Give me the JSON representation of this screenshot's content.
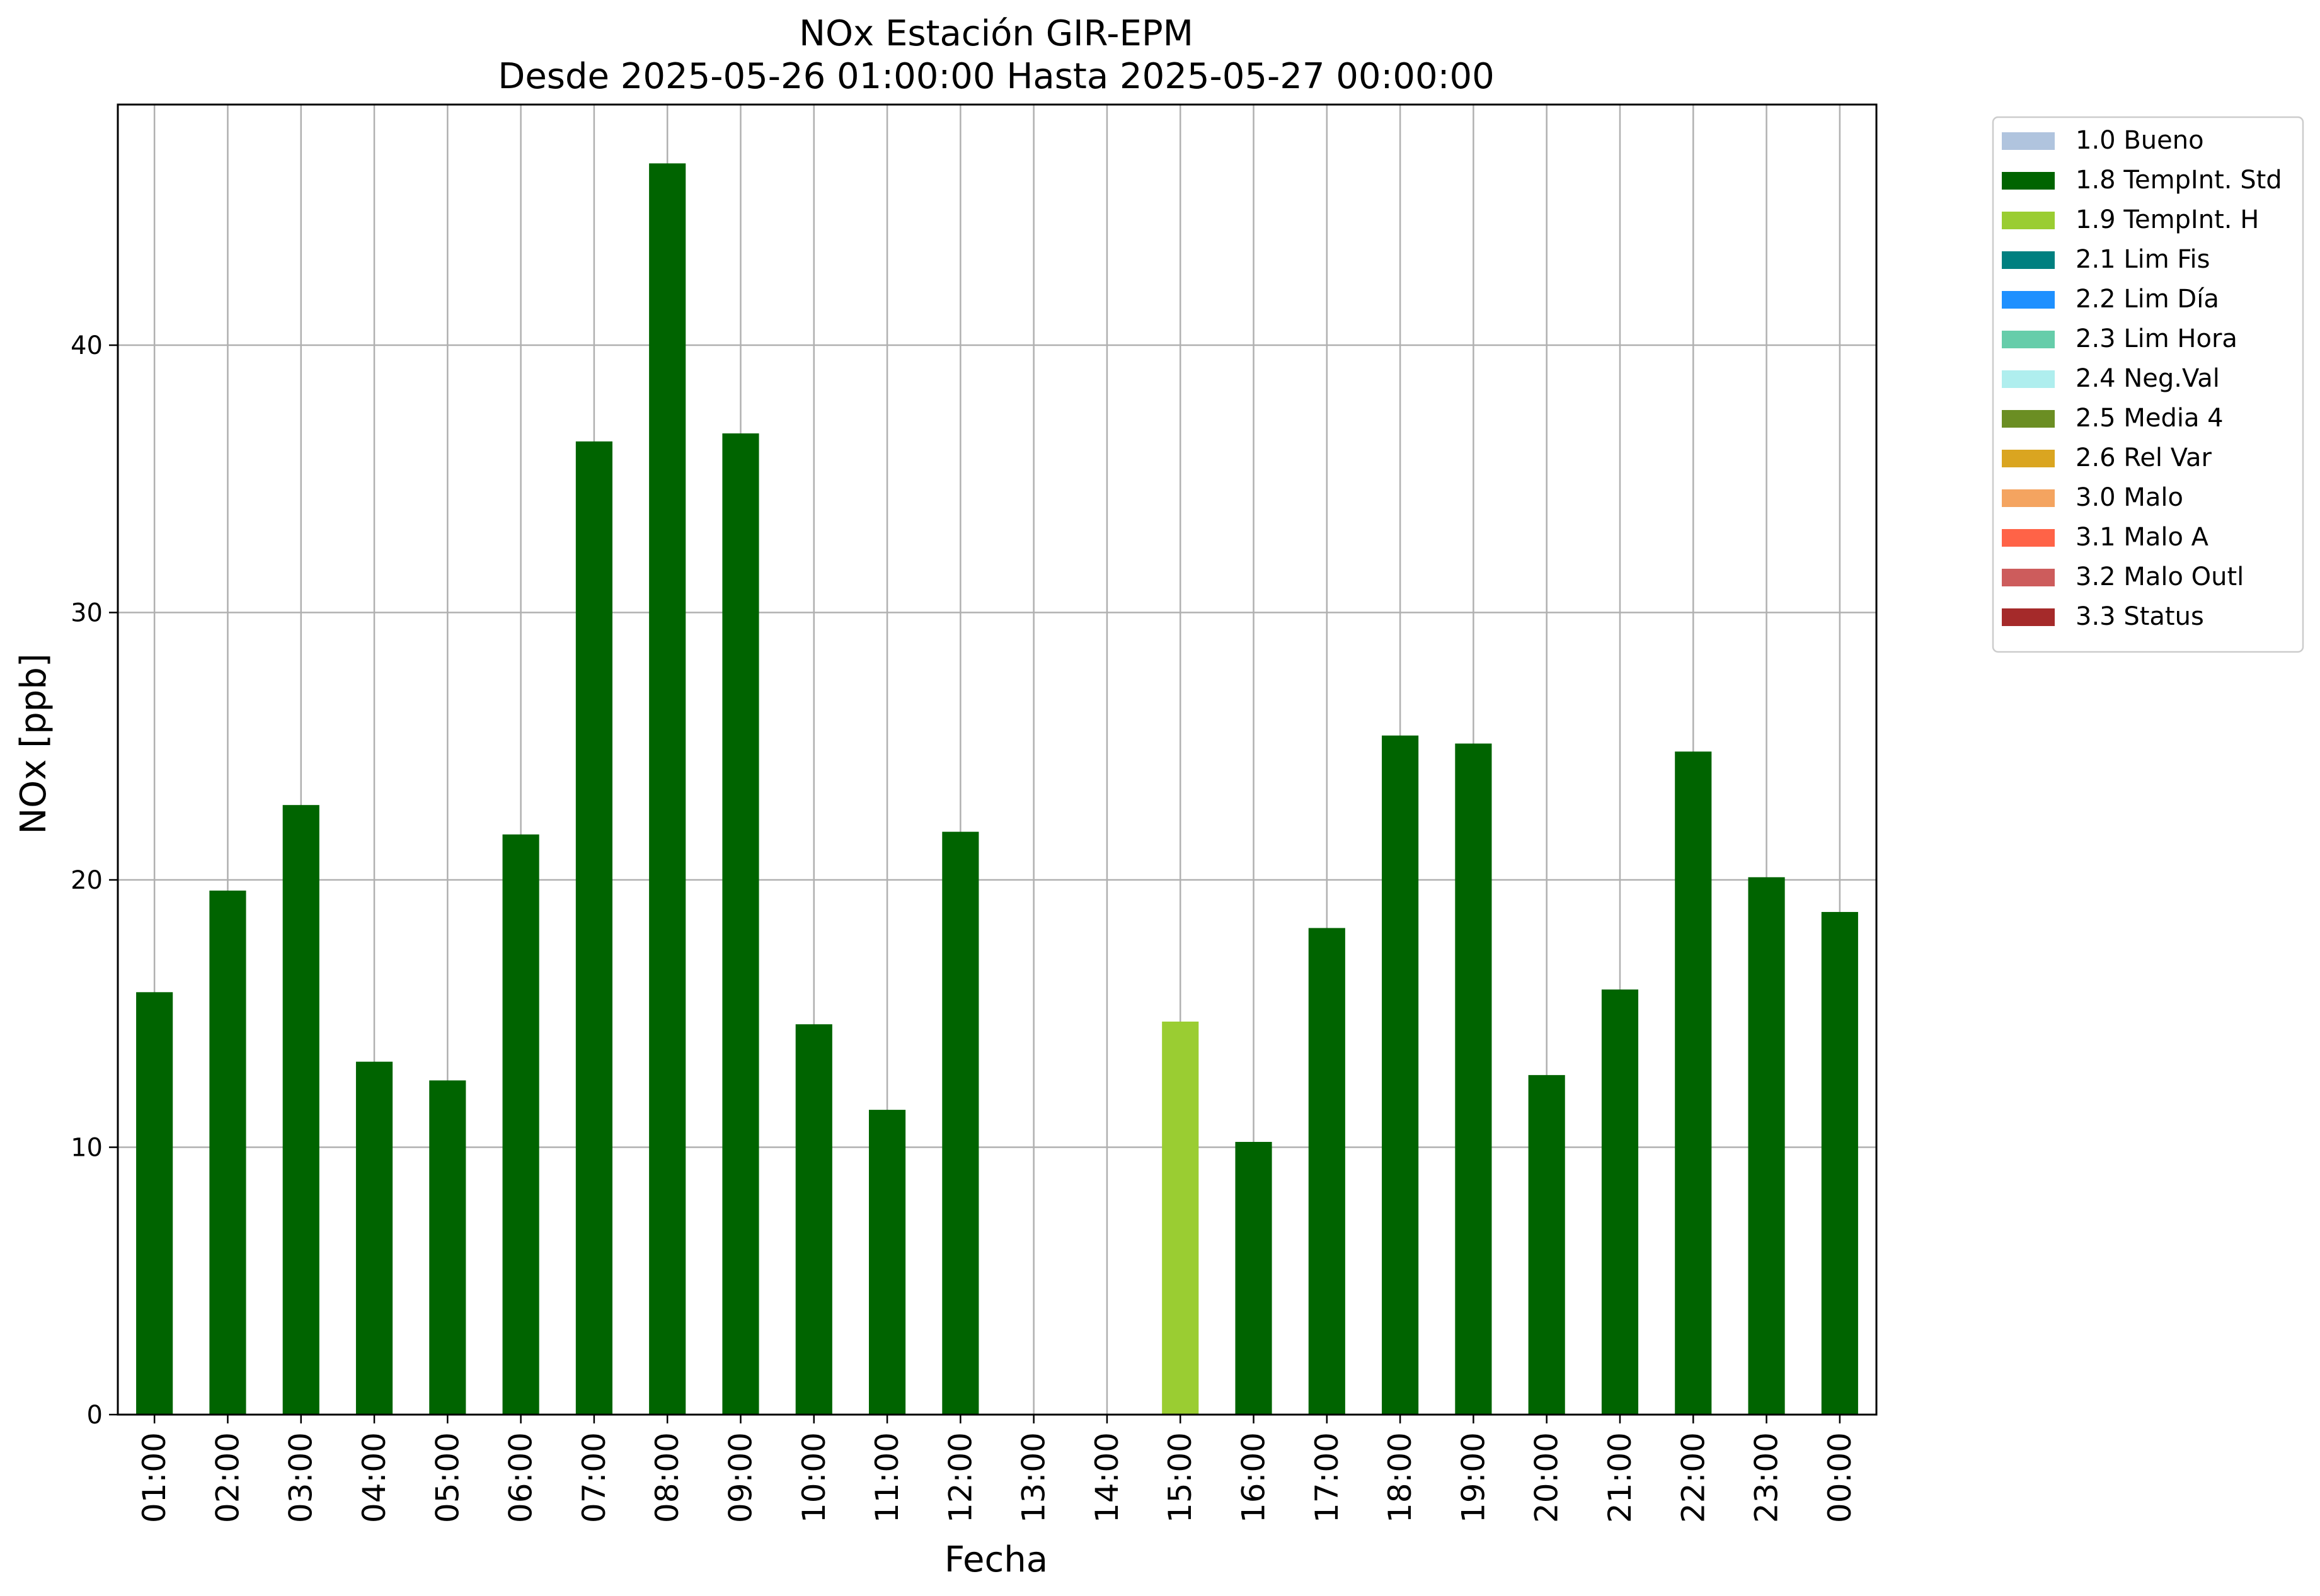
{
  "chart_data": {
    "type": "bar",
    "title": "NOx Estación GIR-EPM",
    "subtitle": "Desde 2025-05-26 01:00:00 Hasta 2025-05-27 00:00:00",
    "xlabel": "Fecha",
    "ylabel": "NOx [ppb]",
    "ylim": [
      0,
      49
    ],
    "yticks": [
      0,
      10,
      20,
      30,
      40
    ],
    "grid": true,
    "legend_position": "outside-right-top",
    "categories": [
      "01:00",
      "02:00",
      "03:00",
      "04:00",
      "05:00",
      "06:00",
      "07:00",
      "08:00",
      "09:00",
      "10:00",
      "11:00",
      "12:00",
      "13:00",
      "14:00",
      "15:00",
      "16:00",
      "17:00",
      "18:00",
      "19:00",
      "20:00",
      "21:00",
      "22:00",
      "23:00",
      "00:00"
    ],
    "values": [
      15.8,
      19.6,
      22.8,
      13.2,
      12.5,
      21.7,
      36.4,
      46.8,
      36.7,
      14.6,
      11.4,
      21.8,
      null,
      null,
      14.7,
      10.2,
      18.2,
      25.4,
      25.1,
      12.7,
      15.9,
      24.8,
      20.1,
      18.8
    ],
    "flags": [
      "1.8 TempInt. Std",
      "1.8 TempInt. Std",
      "1.8 TempInt. Std",
      "1.8 TempInt. Std",
      "1.8 TempInt. Std",
      "1.8 TempInt. Std",
      "1.8 TempInt. Std",
      "1.8 TempInt. Std",
      "1.8 TempInt. Std",
      "1.8 TempInt. Std",
      "1.8 TempInt. Std",
      "1.8 TempInt. Std",
      null,
      null,
      "1.9 TempInt. H",
      "1.8 TempInt. Std",
      "1.8 TempInt. Std",
      "1.8 TempInt. Std",
      "1.8 TempInt. Std",
      "1.8 TempInt. Std",
      "1.8 TempInt. Std",
      "1.8 TempInt. Std",
      "1.8 TempInt. Std",
      "1.8 TempInt. Std"
    ],
    "legend": [
      {
        "label": "1.0 Bueno",
        "color": "#b0c4de"
      },
      {
        "label": "1.8 TempInt. Std",
        "color": "#006400"
      },
      {
        "label": "1.9 TempInt. H",
        "color": "#9acd32"
      },
      {
        "label": "2.1 Lim Fis",
        "color": "#008080"
      },
      {
        "label": "2.2 Lim Día",
        "color": "#1e90ff"
      },
      {
        "label": "2.3 Lim Hora",
        "color": "#66cdaa"
      },
      {
        "label": "2.4 Neg.Val",
        "color": "#afeeee"
      },
      {
        "label": "2.5 Media 4",
        "color": "#6b8e23"
      },
      {
        "label": "2.6 Rel Var",
        "color": "#daa520"
      },
      {
        "label": "3.0 Malo",
        "color": "#f4a460"
      },
      {
        "label": "3.1 Malo A",
        "color": "#ff6347"
      },
      {
        "label": "3.2 Malo Outl",
        "color": "#cd5c5c"
      },
      {
        "label": "3.3 Status",
        "color": "#a52a2a"
      }
    ]
  }
}
